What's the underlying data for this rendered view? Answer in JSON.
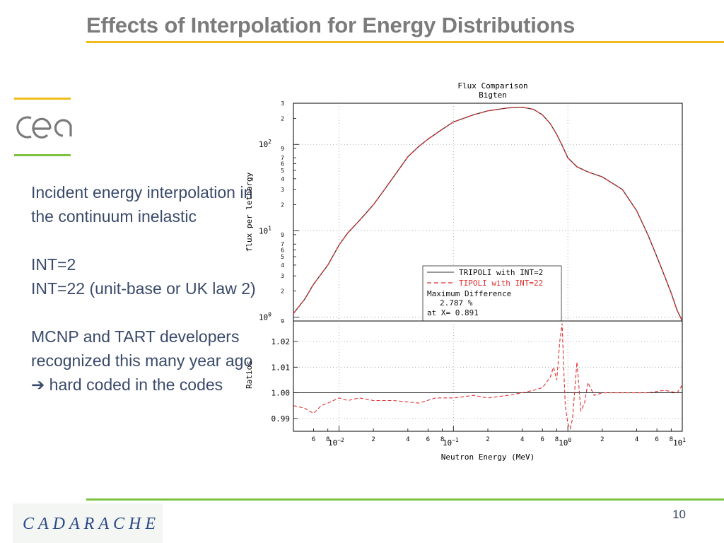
{
  "slide": {
    "title": "Effects of Interpolation for Energy Distributions",
    "page_number": "10",
    "cea_logo_text": "cea",
    "footer_logo_text": "CADARACHE"
  },
  "text": {
    "para1": "Incident energy interpolation in the continuum inelastic",
    "int2": "INT=2",
    "int22": "INT=22 (unit-base or UK law 2)",
    "para3_line": "MCNP and TART developers recognized this many year ago",
    "arrow": "➔",
    "para3_end": "hard coded in the codes"
  },
  "chart_data": [
    {
      "type": "line",
      "title": "Flux Comparison",
      "subtitle": "Bigten",
      "ylabel": "flux per lethargy",
      "yscale": "log",
      "xscale": "log",
      "xlim": [
        0.004,
        10
      ],
      "ylim": [
        0.9,
        300
      ],
      "y_decade_labels": [
        {
          "base": "10",
          "exp": "2"
        },
        {
          "base": "10",
          "exp": "1"
        },
        {
          "base": "10",
          "exp": "0"
        }
      ],
      "y_minor_labels": [
        "3",
        "2",
        "9",
        "7",
        "6",
        "5",
        "4",
        "3",
        "2",
        "9",
        "7",
        "6",
        "5",
        "4",
        "3",
        "2",
        "9"
      ],
      "grid": true,
      "legend": {
        "placement": "bottom-right",
        "entries": [
          {
            "label": "TRIPOLI with INT=2",
            "color": "#333333",
            "style": "solid"
          },
          {
            "label": "TIPOLI with INT=22",
            "color": "#e03030",
            "style": "dashed"
          }
        ],
        "notes": [
          "Maximum Difference",
          "2.787 %",
          "at X= 0.891"
        ]
      },
      "series": [
        {
          "name": "TRIPOLI with INT=2",
          "x": [
            0.004,
            0.005,
            0.006,
            0.008,
            0.01,
            0.012,
            0.015,
            0.02,
            0.025,
            0.03,
            0.04,
            0.05,
            0.06,
            0.08,
            0.1,
            0.15,
            0.2,
            0.3,
            0.4,
            0.5,
            0.6,
            0.7,
            0.8,
            0.9,
            1.0,
            1.2,
            1.5,
            2.0,
            3.0,
            4.0,
            5.0,
            6.0,
            7.0,
            8.0,
            9.0,
            10.0
          ],
          "y": [
            1.1,
            1.6,
            2.4,
            4.0,
            6.8,
            9.5,
            13,
            20,
            30,
            42,
            72,
            95,
            115,
            150,
            182,
            220,
            245,
            265,
            270,
            255,
            220,
            175,
            130,
            95,
            70,
            55,
            48,
            42,
            30,
            17,
            9,
            5,
            3,
            1.9,
            1.2,
            0.9
          ]
        },
        {
          "name": "TIPOLI with INT=22",
          "x": [
            0.004,
            0.005,
            0.006,
            0.008,
            0.01,
            0.012,
            0.015,
            0.02,
            0.025,
            0.03,
            0.04,
            0.05,
            0.06,
            0.08,
            0.1,
            0.15,
            0.2,
            0.3,
            0.4,
            0.5,
            0.6,
            0.7,
            0.8,
            0.9,
            1.0,
            1.2,
            1.5,
            2.0,
            3.0,
            4.0,
            5.0,
            6.0,
            7.0,
            8.0,
            9.0,
            10.0
          ],
          "y": [
            1.1,
            1.6,
            2.4,
            4.0,
            6.8,
            9.5,
            13,
            20,
            30,
            42,
            72,
            95,
            115,
            150,
            182,
            220,
            245,
            265,
            270,
            255,
            220,
            175,
            130,
            95,
            70,
            55,
            48,
            42,
            30,
            17,
            9,
            5,
            3,
            1.9,
            1.2,
            0.9
          ]
        }
      ]
    },
    {
      "type": "line",
      "ylabel": "Ratios",
      "xlabel": "Neutron Energy (MeV)",
      "xscale": "log",
      "xlim": [
        0.004,
        10
      ],
      "ylim": [
        0.985,
        1.028
      ],
      "yticks": [
        "1.02",
        "1.01",
        "1.00",
        "0.99"
      ],
      "x_minor_labels": [
        "6",
        "8",
        "2",
        "4",
        "6",
        "8",
        "2",
        "4",
        "6",
        "8",
        "2",
        "4",
        "6",
        "8"
      ],
      "x_decade_labels": [
        {
          "base": "10",
          "exp": "−2"
        },
        {
          "base": "10",
          "exp": "−1"
        },
        {
          "base": "10",
          "exp": "0"
        },
        {
          "base": "10",
          "exp": "1"
        }
      ],
      "reference_line": 1.0,
      "grid": true,
      "series": [
        {
          "name": "TIPOLI with INT=22",
          "x": [
            0.004,
            0.005,
            0.006,
            0.007,
            0.008,
            0.01,
            0.012,
            0.015,
            0.02,
            0.03,
            0.05,
            0.07,
            0.1,
            0.15,
            0.2,
            0.3,
            0.4,
            0.5,
            0.6,
            0.7,
            0.75,
            0.8,
            0.85,
            0.891,
            0.92,
            0.95,
            1.0,
            1.05,
            1.1,
            1.2,
            1.3,
            1.4,
            1.5,
            1.7,
            2.0,
            3.0,
            5.0,
            7.0,
            9.0,
            10.0
          ],
          "y": [
            0.995,
            0.994,
            0.992,
            0.995,
            0.996,
            0.998,
            0.997,
            0.998,
            0.997,
            0.997,
            0.996,
            0.998,
            0.998,
            0.999,
            0.998,
            0.999,
            1.0,
            1.001,
            1.002,
            1.006,
            1.01,
            1.005,
            1.02,
            1.027,
            1.01,
            0.995,
            0.988,
            0.986,
            0.99,
            1.012,
            0.993,
            0.996,
            1.004,
            0.999,
            1.0,
            1.0,
            1.0,
            1.001,
            1.0,
            1.003
          ]
        }
      ]
    }
  ]
}
